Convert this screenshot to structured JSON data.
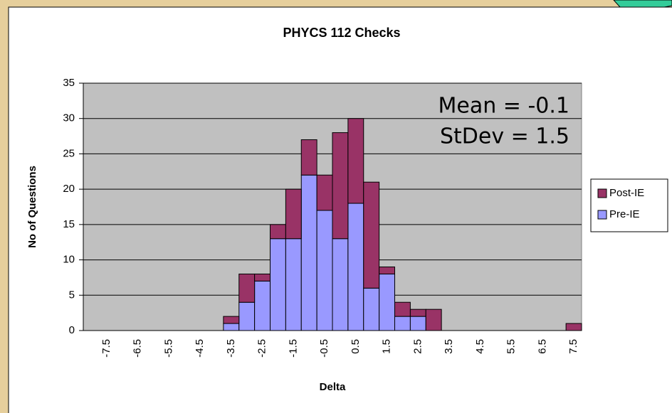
{
  "chart_data": {
    "type": "stacked_bar",
    "title": "PHYCS 112 Checks",
    "x_label": "Delta",
    "y_label": "No of Questions",
    "annotations": [
      "Mean = -0.1",
      "StDev = 1.5"
    ],
    "categories": [
      null,
      "-7.5",
      null,
      "-6.5",
      null,
      "-5.5",
      null,
      "-4.5",
      null,
      "-3.5",
      null,
      "-2.5",
      null,
      "-1.5",
      null,
      "-0.5",
      null,
      "0.5",
      null,
      "1.5",
      null,
      "2.5",
      null,
      "3.5",
      null,
      "4.5",
      null,
      "5.5",
      null,
      "6.5",
      null,
      "7.5"
    ],
    "series": [
      {
        "name": "Pre-IE",
        "color": "#9999ff",
        "values": [
          0,
          0,
          0,
          0,
          0,
          0,
          0,
          0,
          0,
          1,
          4,
          7,
          13,
          13,
          22,
          17,
          13,
          18,
          6,
          8,
          2,
          2,
          0,
          0,
          0,
          0,
          0,
          0,
          0,
          0,
          0,
          0
        ]
      },
      {
        "name": "Post-IE",
        "color": "#993366",
        "values": [
          0,
          0,
          0,
          0,
          0,
          0,
          0,
          0,
          0,
          1,
          4,
          1,
          2,
          7,
          5,
          5,
          15,
          12,
          15,
          1,
          2,
          1,
          3,
          0,
          0,
          0,
          0,
          0,
          0,
          0,
          0,
          1
        ]
      }
    ],
    "ylim": [
      0,
      35
    ],
    "yticks": [
      0,
      5,
      10,
      15,
      20,
      25,
      30,
      35
    ],
    "grid": true,
    "legend": "right"
  }
}
